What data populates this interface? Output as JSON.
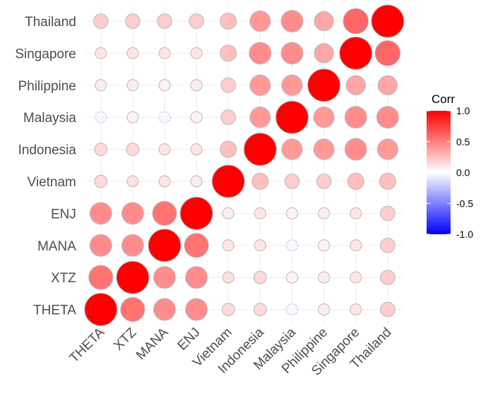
{
  "chart_data": {
    "type": "heatmap",
    "subtype": "correlation-circle",
    "variables": [
      "THETA",
      "XTZ",
      "MANA",
      "ENJ",
      "Vietnam",
      "Indonesia",
      "Malaysia",
      "Philippine",
      "Singapore",
      "Thailand"
    ],
    "y_order_top_to_bottom": [
      "Thailand",
      "Singapore",
      "Philippine",
      "Malaysia",
      "Indonesia",
      "Vietnam",
      "ENJ",
      "MANA",
      "XTZ",
      "THETA"
    ],
    "matrix": [
      [
        1.0,
        0.55,
        0.45,
        0.45,
        0.15,
        0.15,
        -0.03,
        0.07,
        0.1,
        0.2
      ],
      [
        0.55,
        1.0,
        0.45,
        0.45,
        0.12,
        0.15,
        0.05,
        0.07,
        0.1,
        0.2
      ],
      [
        0.45,
        0.45,
        1.0,
        0.55,
        0.1,
        0.1,
        -0.03,
        0.05,
        0.1,
        0.2
      ],
      [
        0.45,
        0.45,
        0.55,
        1.0,
        0.08,
        0.1,
        0.05,
        0.07,
        0.1,
        0.2
      ],
      [
        0.15,
        0.12,
        0.1,
        0.08,
        1.0,
        0.25,
        0.2,
        0.2,
        0.25,
        0.25
      ],
      [
        0.15,
        0.15,
        0.1,
        0.1,
        0.25,
        1.0,
        0.4,
        0.4,
        0.45,
        0.4
      ],
      [
        -0.03,
        0.05,
        -0.03,
        0.05,
        0.2,
        0.4,
        1.0,
        0.4,
        0.45,
        0.45
      ],
      [
        0.07,
        0.07,
        0.05,
        0.07,
        0.2,
        0.4,
        0.4,
        1.0,
        0.35,
        0.35
      ],
      [
        0.1,
        0.1,
        0.1,
        0.1,
        0.25,
        0.45,
        0.45,
        0.35,
        1.0,
        0.6
      ],
      [
        0.2,
        0.2,
        0.2,
        0.2,
        0.25,
        0.4,
        0.45,
        0.35,
        0.6,
        1.0
      ]
    ],
    "legend": {
      "title": "Corr",
      "ticks": [
        "1.0",
        "0.5",
        "0.0",
        "-0.5",
        "-1.0"
      ],
      "tick_values": [
        1.0,
        0.5,
        0.0,
        -0.5,
        -1.0
      ],
      "range": [
        -1,
        1
      ],
      "colors": {
        "low": "#0000ff",
        "mid": "#ffffff",
        "high": "#ff0000"
      },
      "placement": "right"
    },
    "grid": true,
    "title": "",
    "xlabel": "",
    "ylabel": ""
  }
}
